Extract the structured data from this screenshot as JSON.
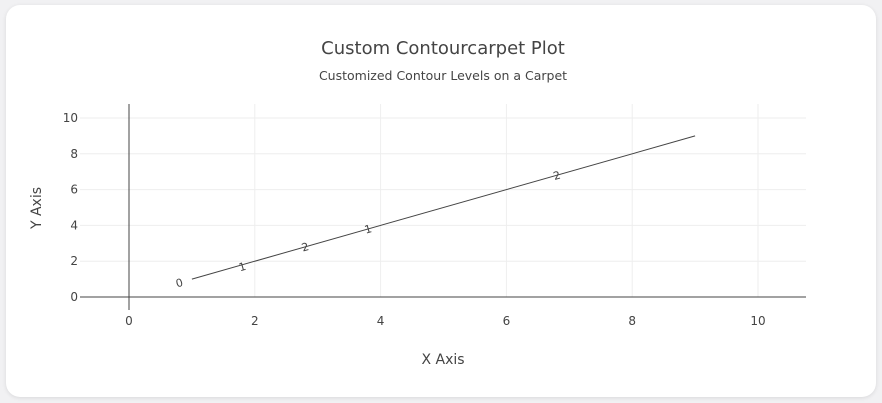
{
  "chart_data": {
    "type": "contourcarpet",
    "title": "Custom Contourcarpet Plot",
    "subtitle": "Customized Contour Levels on a Carpet",
    "xlabel": "X Axis",
    "ylabel": "Y Axis",
    "xlim": [
      -0.8,
      10.8
    ],
    "ylim": [
      -0.6,
      10.8
    ],
    "x_ticks": [
      0,
      2,
      4,
      6,
      8,
      10
    ],
    "y_ticks": [
      0,
      2,
      4,
      6,
      8,
      10
    ],
    "grid": true,
    "line": {
      "x": [
        1,
        9
      ],
      "y": [
        1,
        9
      ]
    },
    "contour_labels": [
      {
        "text": "0",
        "x": 0.8,
        "y": 0.8
      },
      {
        "text": "1",
        "x": 1.8,
        "y": 1.7
      },
      {
        "text": "2",
        "x": 2.8,
        "y": 2.8
      },
      {
        "text": "1",
        "x": 3.8,
        "y": 3.8
      },
      {
        "text": "2",
        "x": 6.8,
        "y": 6.8
      }
    ],
    "colors": {
      "line": "#444444",
      "grid": "#eeeeee",
      "zeroline": "#444444"
    }
  }
}
